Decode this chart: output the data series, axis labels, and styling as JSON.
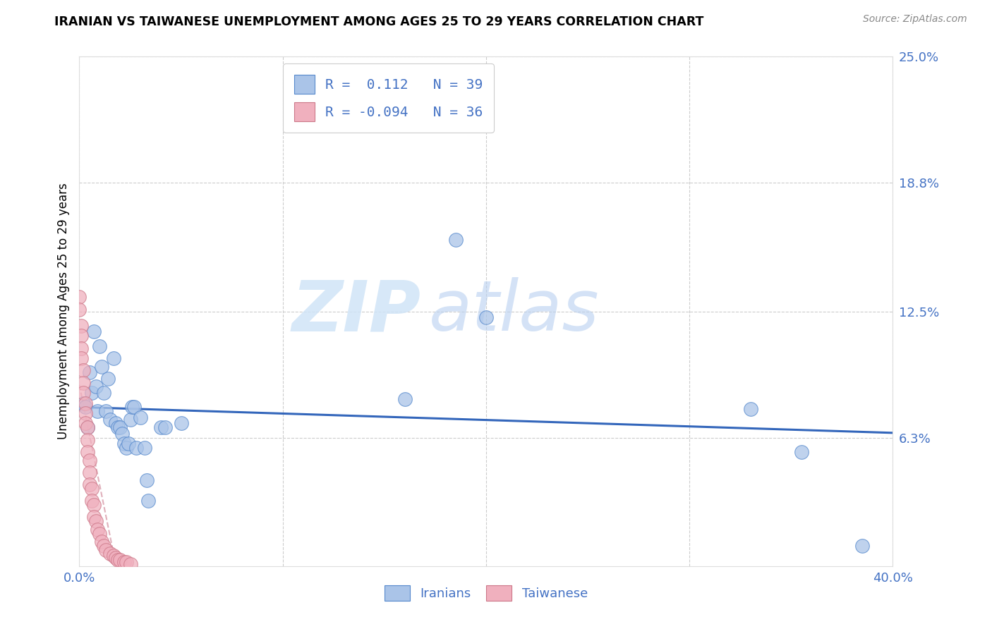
{
  "title": "IRANIAN VS TAIWANESE UNEMPLOYMENT AMONG AGES 25 TO 29 YEARS CORRELATION CHART",
  "source": "Source: ZipAtlas.com",
  "ylabel": "Unemployment Among Ages 25 to 29 years",
  "xlim": [
    0.0,
    0.4
  ],
  "ylim": [
    0.0,
    0.25
  ],
  "xtick_positions": [
    0.0,
    0.4
  ],
  "xticklabels": [
    "0.0%",
    "40.0%"
  ],
  "ytick_positions": [
    0.063,
    0.125,
    0.188,
    0.25
  ],
  "ytick_labels": [
    "6.3%",
    "12.5%",
    "18.8%",
    "25.0%"
  ],
  "iranian_R": "0.112",
  "iranian_N": "39",
  "taiwanese_R": "-0.094",
  "taiwanese_N": "36",
  "iranian_color": "#aac4e8",
  "iranian_edge": "#5588cc",
  "taiwanese_color": "#f0b0be",
  "taiwanese_edge": "#cc7788",
  "trendline_iranian_color": "#3366bb",
  "trendline_taiwanese_color": "#e0b0bb",
  "iranian_x": [
    0.002,
    0.003,
    0.004,
    0.005,
    0.006,
    0.007,
    0.008,
    0.009,
    0.01,
    0.011,
    0.012,
    0.013,
    0.014,
    0.015,
    0.017,
    0.018,
    0.019,
    0.02,
    0.021,
    0.022,
    0.023,
    0.024,
    0.025,
    0.026,
    0.027,
    0.028,
    0.03,
    0.032,
    0.033,
    0.034,
    0.04,
    0.042,
    0.05,
    0.16,
    0.185,
    0.2,
    0.33,
    0.355,
    0.385
  ],
  "iranian_y": [
    0.08,
    0.078,
    0.068,
    0.095,
    0.085,
    0.115,
    0.088,
    0.076,
    0.108,
    0.098,
    0.085,
    0.076,
    0.092,
    0.072,
    0.102,
    0.07,
    0.068,
    0.068,
    0.065,
    0.06,
    0.058,
    0.06,
    0.072,
    0.078,
    0.078,
    0.058,
    0.073,
    0.058,
    0.042,
    0.032,
    0.068,
    0.068,
    0.07,
    0.082,
    0.16,
    0.122,
    0.077,
    0.056,
    0.01
  ],
  "taiwanese_x": [
    0.0,
    0.0,
    0.001,
    0.001,
    0.001,
    0.001,
    0.002,
    0.002,
    0.002,
    0.003,
    0.003,
    0.003,
    0.004,
    0.004,
    0.004,
    0.005,
    0.005,
    0.005,
    0.006,
    0.006,
    0.007,
    0.007,
    0.008,
    0.009,
    0.01,
    0.011,
    0.012,
    0.013,
    0.015,
    0.017,
    0.018,
    0.019,
    0.02,
    0.022,
    0.023,
    0.025
  ],
  "taiwanese_y": [
    0.132,
    0.126,
    0.118,
    0.113,
    0.107,
    0.102,
    0.096,
    0.09,
    0.085,
    0.08,
    0.075,
    0.07,
    0.068,
    0.062,
    0.056,
    0.052,
    0.046,
    0.04,
    0.038,
    0.032,
    0.03,
    0.024,
    0.022,
    0.018,
    0.016,
    0.012,
    0.01,
    0.008,
    0.006,
    0.005,
    0.004,
    0.003,
    0.003,
    0.002,
    0.002,
    0.001
  ],
  "watermark_zip": "ZIP",
  "watermark_atlas": "atlas",
  "background_color": "#ffffff",
  "grid_color": "#cccccc",
  "grid_style": "--"
}
